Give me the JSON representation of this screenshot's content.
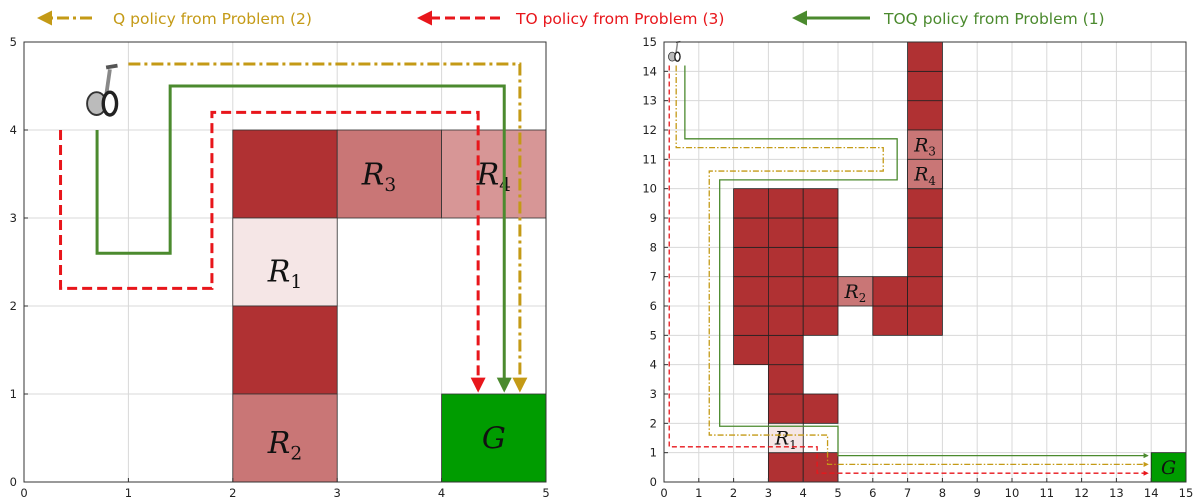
{
  "legend": {
    "items": [
      {
        "label": "Q policy from Problem (2)",
        "color": "#c49a16",
        "style": "dashdot"
      },
      {
        "label": "TO policy from Problem (3)",
        "color": "#e8161b",
        "style": "dashed"
      },
      {
        "label": "TOQ policy from Problem (1)",
        "color": "#4b8a2e",
        "style": "solid"
      }
    ]
  },
  "colors": {
    "obstacle": "#b03133",
    "region_dark": "#b03133",
    "region_medium": "#c97676",
    "region_light": "#d79696",
    "region_pale": "#f5e6e6",
    "goal": "#009c00",
    "grid": "#d8d8d8",
    "q_policy": "#c49a16",
    "to_policy": "#e8161b",
    "toq_policy": "#4b8a2e"
  },
  "left_panel": {
    "x_ticks": [
      "0",
      "1",
      "2",
      "3",
      "4",
      "5"
    ],
    "y_ticks": [
      "0",
      "1",
      "2",
      "3",
      "4",
      "5"
    ],
    "xlim": [
      0,
      5
    ],
    "ylim": [
      0,
      5
    ],
    "robot_icon": "segway-robot-icon",
    "start": [
      0.75,
      4.3
    ],
    "cells": [
      {
        "x": 2,
        "y": 3,
        "w": 1,
        "h": 1,
        "fill": "region_dark"
      },
      {
        "x": 3,
        "y": 3,
        "w": 1,
        "h": 1,
        "fill": "region_medium"
      },
      {
        "x": 4,
        "y": 3,
        "w": 1,
        "h": 1,
        "fill": "region_light"
      },
      {
        "x": 2,
        "y": 2,
        "w": 1,
        "h": 1,
        "fill": "region_pale"
      },
      {
        "x": 2,
        "y": 1,
        "w": 1,
        "h": 1,
        "fill": "region_dark"
      },
      {
        "x": 2,
        "y": 0,
        "w": 1,
        "h": 1,
        "fill": "region_medium"
      },
      {
        "x": 4,
        "y": 0,
        "w": 1,
        "h": 1,
        "fill": "goal"
      }
    ],
    "region_labels": [
      {
        "main": "R",
        "sub": "3",
        "x": 3.4,
        "y": 3.5
      },
      {
        "main": "R",
        "sub": "4",
        "x": 4.5,
        "y": 3.5
      },
      {
        "main": "R",
        "sub": "1",
        "x": 2.5,
        "y": 2.4
      },
      {
        "main": "R",
        "sub": "2",
        "x": 2.5,
        "y": 0.45
      },
      {
        "main": "G",
        "sub": "",
        "x": 4.5,
        "y": 0.5
      }
    ],
    "paths": [
      {
        "policy": "q_policy",
        "points": [
          [
            1.0,
            4.75
          ],
          [
            4.75,
            4.75
          ],
          [
            4.75,
            1.05
          ]
        ]
      },
      {
        "policy": "to_policy",
        "points": [
          [
            0.35,
            4.0
          ],
          [
            0.35,
            2.2
          ],
          [
            1.8,
            2.2
          ],
          [
            1.8,
            4.2
          ],
          [
            4.35,
            4.2
          ],
          [
            4.35,
            1.05
          ]
        ]
      },
      {
        "policy": "toq_policy",
        "points": [
          [
            0.7,
            4.0
          ],
          [
            0.7,
            2.6
          ],
          [
            1.4,
            2.6
          ],
          [
            1.4,
            4.5
          ],
          [
            4.6,
            4.5
          ],
          [
            4.6,
            1.05
          ]
        ]
      }
    ]
  },
  "right_panel": {
    "x_ticks": [
      "0",
      "1",
      "2",
      "3",
      "4",
      "5",
      "6",
      "7",
      "8",
      "9",
      "10",
      "11",
      "12",
      "13",
      "14",
      "15"
    ],
    "y_ticks": [
      "0",
      "1",
      "2",
      "3",
      "4",
      "5",
      "6",
      "7",
      "8",
      "9",
      "10",
      "11",
      "12",
      "13",
      "14",
      "15"
    ],
    "xlim": [
      0,
      15
    ],
    "ylim": [
      0,
      15
    ],
    "robot_icon": "segway-robot-icon",
    "start": [
      0.3,
      14.5
    ],
    "obstacle_cells": [
      [
        2,
        4
      ],
      [
        2,
        5
      ],
      [
        2,
        6
      ],
      [
        2,
        7
      ],
      [
        2,
        8
      ],
      [
        2,
        9
      ],
      [
        3,
        0
      ],
      [
        3,
        1
      ],
      [
        3,
        2
      ],
      [
        3,
        3
      ],
      [
        3,
        4
      ],
      [
        3,
        5
      ],
      [
        3,
        6
      ],
      [
        3,
        7
      ],
      [
        3,
        8
      ],
      [
        3,
        9
      ],
      [
        4,
        0
      ],
      [
        4,
        5
      ],
      [
        4,
        6
      ],
      [
        4,
        7
      ],
      [
        4,
        8
      ],
      [
        4,
        9
      ],
      [
        6,
        5
      ],
      [
        6,
        6
      ],
      [
        7,
        5
      ],
      [
        7,
        6
      ],
      [
        7,
        7
      ],
      [
        7,
        8
      ],
      [
        7,
        9
      ],
      [
        7,
        10
      ],
      [
        7,
        12
      ],
      [
        7,
        13
      ],
      [
        7,
        14
      ],
      [
        4,
        2
      ]
    ],
    "region_cells": [
      {
        "x": 7,
        "y": 11,
        "fill": "region_medium"
      },
      {
        "x": 7,
        "y": 10,
        "fill": "region_medium"
      },
      {
        "x": 5,
        "y": 6,
        "fill": "region_medium"
      },
      {
        "x": 3,
        "y": 1,
        "fill": "region_pale"
      },
      {
        "x": 14,
        "y": 0,
        "fill": "goal"
      }
    ],
    "region_labels": [
      {
        "main": "R",
        "sub": "3",
        "x": 7.5,
        "y": 11.5
      },
      {
        "main": "R",
        "sub": "4",
        "x": 7.5,
        "y": 10.5
      },
      {
        "main": "R",
        "sub": "2",
        "x": 5.5,
        "y": 6.5
      },
      {
        "main": "R",
        "sub": "1",
        "x": 3.5,
        "y": 1.5
      },
      {
        "main": "G",
        "sub": "",
        "x": 14.5,
        "y": 0.5
      }
    ],
    "paths": [
      {
        "policy": "toq_policy",
        "points": [
          [
            0.6,
            14.2
          ],
          [
            0.6,
            11.7
          ],
          [
            6.7,
            11.7
          ],
          [
            6.7,
            10.3
          ],
          [
            1.6,
            10.3
          ],
          [
            1.6,
            1.9
          ],
          [
            5.0,
            1.9
          ],
          [
            5.0,
            0.9
          ],
          [
            13.9,
            0.9
          ]
        ]
      },
      {
        "policy": "q_policy",
        "points": [
          [
            0.35,
            14.2
          ],
          [
            0.35,
            11.4
          ],
          [
            6.3,
            11.4
          ],
          [
            6.3,
            10.6
          ],
          [
            1.3,
            10.6
          ],
          [
            1.3,
            1.6
          ],
          [
            4.7,
            1.6
          ],
          [
            4.7,
            0.6
          ],
          [
            13.9,
            0.6
          ]
        ]
      },
      {
        "policy": "to_policy",
        "points": [
          [
            0.15,
            14.2
          ],
          [
            0.15,
            1.2
          ],
          [
            4.4,
            1.2
          ],
          [
            4.4,
            0.3
          ],
          [
            13.9,
            0.3
          ]
        ]
      }
    ]
  }
}
